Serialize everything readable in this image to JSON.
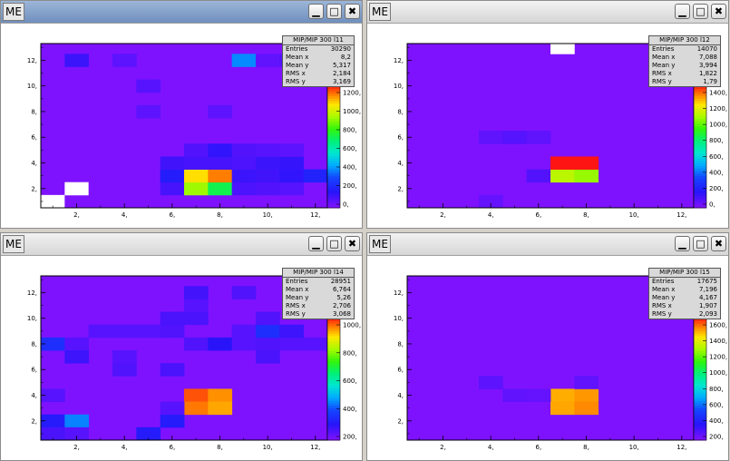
{
  "window_title": "ME",
  "icons": {
    "minimize": "minimize-icon",
    "maximize": "maximize-icon",
    "close": "close-icon"
  },
  "chart_data": [
    {
      "type": "heatmap",
      "stats": {
        "title": "MIP/MIP  300  l11",
        "entries": "30290",
        "mean_x": "8,2",
        "mean_y": "5,317",
        "rms_x": "2,184",
        "rms_y": "3,169"
      },
      "x_ticks": [
        "2,",
        "4,",
        "6,",
        "8,",
        "10,",
        "12,"
      ],
      "y_ticks": [
        "2,",
        "4,",
        "6,",
        "8,",
        "10,",
        "12,"
      ],
      "z_ticks": [
        "1200,",
        "1000,",
        "800,",
        "600,",
        "400,",
        "200,",
        "0,"
      ],
      "z_max": 1300,
      "cells": [
        [
          1,
          1,
          2000
        ],
        [
          2,
          1,
          0
        ],
        [
          2,
          2,
          2000
        ],
        [
          3,
          2,
          0
        ],
        [
          6,
          2,
          100
        ],
        [
          7,
          2,
          950
        ],
        [
          8,
          2,
          750
        ],
        [
          9,
          2,
          90
        ],
        [
          10,
          2,
          80
        ],
        [
          11,
          2,
          70
        ],
        [
          6,
          3,
          180
        ],
        [
          7,
          3,
          1100
        ],
        [
          8,
          3,
          1200
        ],
        [
          9,
          3,
          120
        ],
        [
          10,
          3,
          110
        ],
        [
          11,
          3,
          140
        ],
        [
          12,
          3,
          200
        ],
        [
          6,
          4,
          110
        ],
        [
          7,
          4,
          100
        ],
        [
          8,
          4,
          100
        ],
        [
          9,
          4,
          90
        ],
        [
          10,
          4,
          120
        ],
        [
          11,
          4,
          130
        ],
        [
          7,
          5,
          80
        ],
        [
          8,
          5,
          140
        ],
        [
          9,
          5,
          80
        ],
        [
          10,
          5,
          70
        ],
        [
          11,
          5,
          60
        ],
        [
          5,
          8,
          60
        ],
        [
          8,
          8,
          60
        ],
        [
          5,
          10,
          70
        ],
        [
          2,
          12,
          120
        ],
        [
          4,
          12,
          60
        ],
        [
          9,
          12,
          400
        ],
        [
          10,
          12,
          50
        ],
        [
          11,
          12,
          80
        ]
      ]
    },
    {
      "type": "heatmap",
      "stats": {
        "title": "MIP/MIP  300  l12",
        "entries": "14070",
        "mean_x": "7,088",
        "mean_y": "3,994",
        "rms_x": "1,822",
        "rms_y": "1,79"
      },
      "x_ticks": [
        "2,",
        "4,",
        "6,",
        "8,",
        "10,",
        "12,"
      ],
      "y_ticks": [
        "2,",
        "4,",
        "6,",
        "8,",
        "10,",
        "12,"
      ],
      "z_ticks": [
        "1400,",
        "1200,",
        "1000,",
        "800,",
        "600,",
        "400,",
        "200,",
        "0,"
      ],
      "z_max": 1450,
      "cells": [
        [
          7,
          13,
          2000
        ],
        [
          4,
          6,
          60
        ],
        [
          5,
          6,
          80
        ],
        [
          6,
          6,
          60
        ],
        [
          6,
          3,
          90
        ],
        [
          7,
          3,
          1100
        ],
        [
          8,
          3,
          1050
        ],
        [
          7,
          4,
          1450
        ],
        [
          8,
          4,
          1450
        ],
        [
          4,
          1,
          50
        ]
      ]
    },
    {
      "type": "heatmap",
      "stats": {
        "title": "MIP/MIP  300  l14",
        "entries": "28951",
        "mean_x": "6,764",
        "mean_y": "5,26",
        "rms_x": "2,706",
        "rms_y": "3,068"
      },
      "x_ticks": [
        "2,",
        "4,",
        "6,",
        "8,",
        "10,",
        "12,"
      ],
      "y_ticks": [
        "2,",
        "4,",
        "6,",
        "8,",
        "10,",
        "12,"
      ],
      "z_ticks": [
        "1000,",
        "800,",
        "600,",
        "400,",
        "200,"
      ],
      "z_max": 1100,
      "cells": [
        [
          7,
          4,
          1050
        ],
        [
          8,
          4,
          1000
        ],
        [
          7,
          3,
          1020
        ],
        [
          8,
          3,
          980
        ],
        [
          1,
          2,
          150
        ],
        [
          2,
          2,
          330
        ],
        [
          1,
          1,
          80
        ],
        [
          2,
          1,
          60
        ],
        [
          5,
          1,
          150
        ],
        [
          6,
          2,
          150
        ],
        [
          6,
          3,
          60
        ],
        [
          1,
          4,
          60
        ],
        [
          1,
          8,
          200
        ],
        [
          2,
          8,
          60
        ],
        [
          2,
          7,
          100
        ],
        [
          4,
          7,
          60
        ],
        [
          6,
          6,
          80
        ],
        [
          4,
          6,
          70
        ],
        [
          7,
          8,
          70
        ],
        [
          8,
          8,
          130
        ],
        [
          9,
          8,
          60
        ],
        [
          10,
          8,
          70
        ],
        [
          11,
          8,
          60
        ],
        [
          12,
          8,
          60
        ],
        [
          3,
          9,
          60
        ],
        [
          4,
          9,
          60
        ],
        [
          5,
          9,
          60
        ],
        [
          6,
          9,
          70
        ],
        [
          9,
          9,
          60
        ],
        [
          10,
          9,
          200
        ],
        [
          11,
          9,
          100
        ],
        [
          6,
          10,
          80
        ],
        [
          7,
          10,
          80
        ],
        [
          10,
          10,
          70
        ],
        [
          7,
          11,
          60
        ],
        [
          7,
          12,
          90
        ],
        [
          9,
          12,
          70
        ],
        [
          10,
          7,
          80
        ]
      ]
    },
    {
      "type": "heatmap",
      "stats": {
        "title": "MIP/MIP  300  l15",
        "entries": "17675",
        "mean_x": "7,196",
        "mean_y": "4,167",
        "rms_x": "1,907",
        "rms_y": "2,093"
      },
      "x_ticks": [
        "2,",
        "4,",
        "6,",
        "8,",
        "10,",
        "12,"
      ],
      "y_ticks": [
        "2,",
        "4,",
        "6,",
        "8,",
        "10,",
        "12,"
      ],
      "z_ticks": [
        "1600,",
        "1400,",
        "1200,",
        "1000,",
        "800,",
        "600,",
        "400,",
        "200,"
      ],
      "z_max": 1750,
      "cells": [
        [
          7,
          4,
          1550
        ],
        [
          8,
          4,
          1580
        ],
        [
          7,
          3,
          1560
        ],
        [
          8,
          3,
          1600
        ],
        [
          4,
          5,
          80
        ],
        [
          5,
          4,
          70
        ],
        [
          6,
          4,
          60
        ],
        [
          8,
          5,
          70
        ]
      ]
    }
  ]
}
